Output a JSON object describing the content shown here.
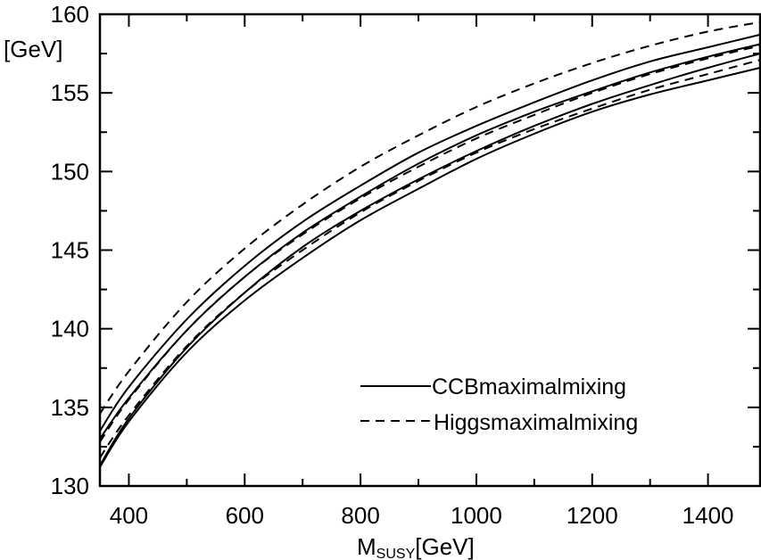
{
  "chart_data": {
    "type": "line",
    "title": "",
    "xlabel_main": "M",
    "xlabel_sub": "SUSY",
    "xlabel_unit": "[GeV]",
    "ylabel": "[GeV]",
    "xlim": [
      350,
      1490
    ],
    "ylim": [
      130,
      160
    ],
    "x_ticks": [
      400,
      600,
      800,
      1000,
      1200,
      1400
    ],
    "y_ticks": [
      130,
      135,
      140,
      145,
      150,
      155,
      160
    ],
    "x_minor_step": 100,
    "y_minor_step": 2.5,
    "grid": false,
    "legend_position": "lower-right",
    "legend": [
      {
        "label": "CCBmaximalmixing",
        "style": "solid"
      },
      {
        "label": "Higgsmaximalmixing",
        "style": "dashed"
      }
    ],
    "x": [
      350,
      400,
      500,
      600,
      700,
      800,
      900,
      1000,
      1100,
      1200,
      1300,
      1400,
      1490
    ],
    "series": [
      {
        "style": "solid",
        "values": [
          131.2,
          134.1,
          138.5,
          141.8,
          144.5,
          146.9,
          148.9,
          150.8,
          152.4,
          153.8,
          154.9,
          155.8,
          156.6
        ]
      },
      {
        "style": "solid",
        "values": [
          131.3,
          134.3,
          138.8,
          142.3,
          145.2,
          147.5,
          149.5,
          151.3,
          152.9,
          154.3,
          155.5,
          156.6,
          157.5
        ]
      },
      {
        "style": "solid",
        "values": [
          133.0,
          135.6,
          139.9,
          143.3,
          146.1,
          148.4,
          150.5,
          152.3,
          153.8,
          155.1,
          156.3,
          157.3,
          158.1
        ]
      },
      {
        "style": "solid",
        "values": [
          133.5,
          136.3,
          140.6,
          144.0,
          146.8,
          149.1,
          151.2,
          152.9,
          154.4,
          155.8,
          157.0,
          157.9,
          158.7
        ]
      },
      {
        "style": "dashed",
        "values": [
          131.8,
          134.5,
          138.9,
          142.3,
          145.0,
          147.4,
          149.4,
          151.2,
          152.7,
          154.0,
          155.2,
          156.2,
          157.1
        ]
      },
      {
        "style": "dashed",
        "values": [
          132.8,
          135.5,
          139.9,
          143.3,
          146.0,
          148.3,
          150.3,
          152.1,
          153.6,
          155.0,
          156.2,
          157.2,
          158.0
        ]
      },
      {
        "style": "dashed",
        "values": [
          134.6,
          137.3,
          141.7,
          145.1,
          147.9,
          150.3,
          152.3,
          154.1,
          155.6,
          156.9,
          158.0,
          158.9,
          159.5
        ]
      }
    ]
  }
}
